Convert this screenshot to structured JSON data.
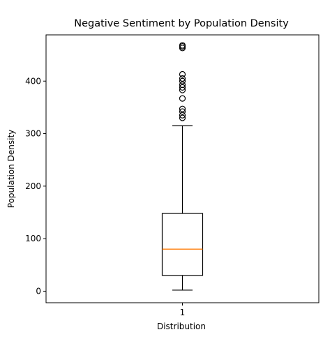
{
  "chart_data": {
    "type": "boxplot",
    "title": "Negative Sentiment by Population Density",
    "xlabel": "Distribution",
    "ylabel": "Population Density",
    "categories": [
      "1"
    ],
    "ylim": [
      -22,
      488
    ],
    "yticks": [
      0,
      100,
      200,
      300,
      400
    ],
    "grid": false,
    "legend": "none",
    "boxes": [
      {
        "category": "1",
        "whisker_low": 2,
        "q1": 30,
        "median": 80,
        "q3": 148,
        "whisker_high": 315,
        "fliers": [
          330,
          335,
          342,
          347,
          367,
          383,
          388,
          393,
          400,
          405,
          413,
          463,
          466,
          468
        ]
      }
    ],
    "colors": {
      "box": "#000000",
      "median": "#ff7f0e",
      "flier": "#000000"
    }
  }
}
